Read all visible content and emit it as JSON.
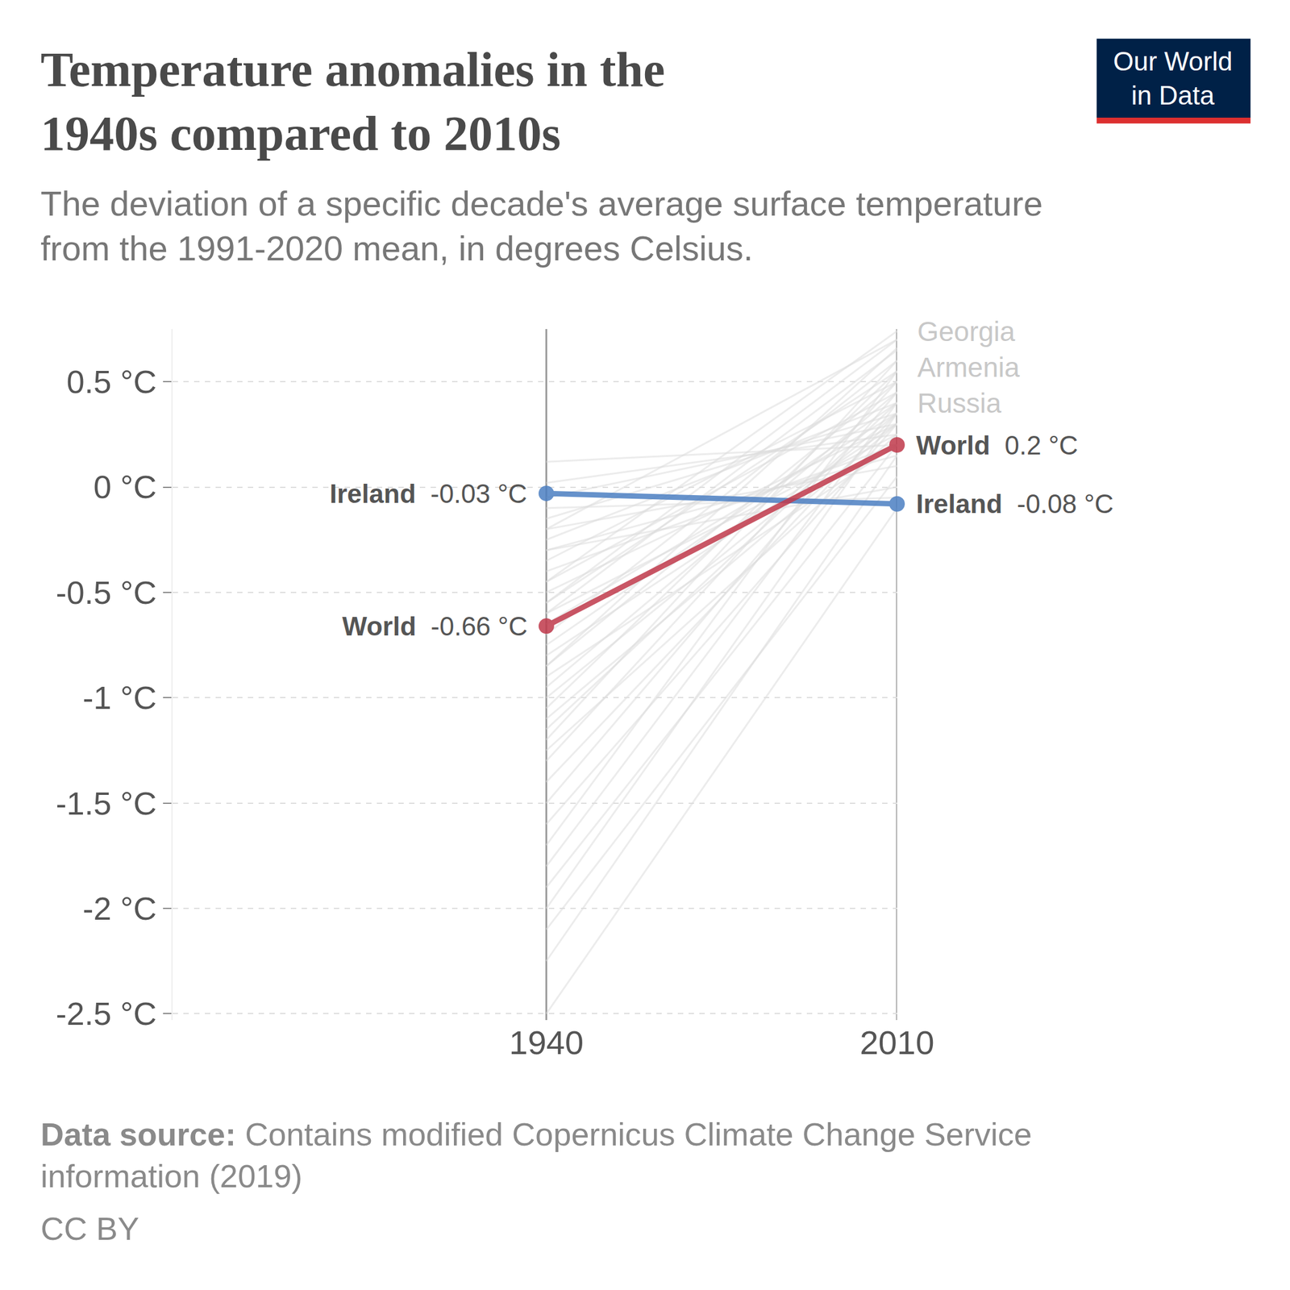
{
  "chart_data": {
    "type": "slope",
    "title": "Temperature anomalies in the\n1940s compared to 2010s",
    "subtitle": "The deviation of a specific decade's average surface temperature\nfrom the 1991-2020 mean, in degrees Celsius.",
    "source_label": "Data source:",
    "source": "Contains modified Copernicus Climate Change Service\ninformation (2019)",
    "license": "CC BY",
    "logo": "Our World\nin Data",
    "categories": [
      "1940",
      "2010"
    ],
    "ylim": [
      -2.53,
      0.75
    ],
    "yticks": [
      {
        "value": 0.5,
        "label": "0.5 °C"
      },
      {
        "value": 0,
        "label": "0 °C"
      },
      {
        "value": -0.5,
        "label": "-0.5 °C"
      },
      {
        "value": -1,
        "label": "-1 °C"
      },
      {
        "value": -1.5,
        "label": "-1.5 °C"
      },
      {
        "value": -2,
        "label": "-2 °C"
      },
      {
        "value": -2.5,
        "label": "-2.5 °C"
      }
    ],
    "grid": true,
    "color": "#dddddd",
    "series": [
      {
        "values": [
          0.12,
          0.2
        ]
      },
      {
        "values": [
          0.02,
          0.25
        ]
      },
      {
        "values": [
          -0.05,
          0.3
        ]
      },
      {
        "values": [
          -0.15,
          0.35
        ]
      },
      {
        "values": [
          -0.2,
          0.1
        ]
      },
      {
        "values": [
          -0.25,
          0.4
        ]
      },
      {
        "values": [
          -0.3,
          0.15
        ]
      },
      {
        "values": [
          -0.35,
          0.5
        ]
      },
      {
        "values": [
          -0.4,
          0.2
        ]
      },
      {
        "values": [
          -0.45,
          0.45
        ]
      },
      {
        "values": [
          -0.5,
          0.3
        ]
      },
      {
        "values": [
          -0.55,
          0.55
        ]
      },
      {
        "values": [
          -0.6,
          0.25
        ]
      },
      {
        "values": [
          -0.65,
          0.35
        ]
      },
      {
        "values": [
          -0.7,
          0.6
        ]
      },
      {
        "values": [
          -0.75,
          0.4
        ]
      },
      {
        "values": [
          -0.8,
          0.3
        ]
      },
      {
        "values": [
          -0.85,
          0.5
        ]
      },
      {
        "values": [
          -0.9,
          0.2
        ]
      },
      {
        "values": [
          -0.95,
          0.45
        ]
      },
      {
        "values": [
          -1.0,
          0.35
        ]
      },
      {
        "values": [
          -1.05,
          0.55
        ]
      },
      {
        "values": [
          -1.1,
          0.3
        ]
      },
      {
        "values": [
          -1.15,
          0.4
        ]
      },
      {
        "values": [
          -1.2,
          0.6
        ]
      },
      {
        "values": [
          -1.25,
          0.25
        ]
      },
      {
        "values": [
          -1.3,
          0.5
        ]
      },
      {
        "values": [
          -1.4,
          0.35
        ]
      },
      {
        "values": [
          -1.5,
          0.45
        ]
      },
      {
        "values": [
          -1.6,
          0.3
        ]
      },
      {
        "values": [
          -1.7,
          0.55
        ]
      },
      {
        "values": [
          -1.8,
          0.4
        ]
      },
      {
        "values": [
          -1.9,
          0.2
        ]
      },
      {
        "values": [
          -2.0,
          0.35
        ]
      },
      {
        "values": [
          -2.1,
          0.05
        ]
      },
      {
        "values": [
          -2.25,
          0.15
        ]
      },
      {
        "values": [
          -2.5,
          -0.1
        ]
      },
      {
        "values": [
          -0.1,
          -0.05
        ]
      },
      {
        "values": [
          -0.3,
          0.0
        ]
      },
      {
        "values": [
          -0.6,
          0.65
        ]
      },
      {
        "values": [
          -0.2,
          0.7
        ]
      },
      {
        "name": "Georgia",
        "values": [
          -0.45,
          0.74
        ]
      },
      {
        "name": "Armenia",
        "values": [
          -0.55,
          0.7
        ]
      },
      {
        "name": "Russia",
        "values": [
          -0.85,
          0.66
        ]
      },
      {
        "name": "Ireland",
        "color": "#4c7fc2",
        "values": [
          -0.03,
          -0.08
        ],
        "value_labels": [
          "-0.03 °C",
          "-0.08 °C"
        ]
      },
      {
        "name": "World",
        "color": "#c0394b",
        "values": [
          -0.66,
          0.2
        ],
        "value_labels": [
          "-0.66 °C",
          "0.2 °C"
        ]
      }
    ]
  }
}
